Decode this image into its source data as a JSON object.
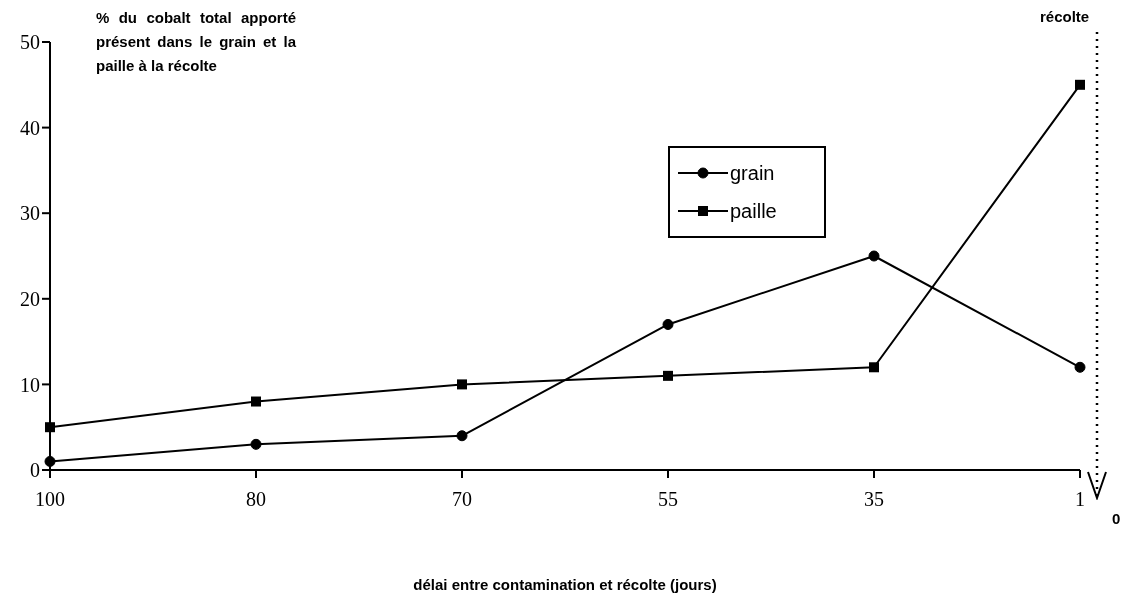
{
  "chart_data": {
    "type": "line",
    "ylabel": "% du cobalt total apporté présent dans le grain et la paille à la récolte",
    "xlabel": "délai entre contamination et récolte (jours)",
    "categories": [
      "100",
      "80",
      "70",
      "55",
      "35",
      "1"
    ],
    "series": [
      {
        "name": "grain",
        "color": "#000000",
        "marker": "circle",
        "values": [
          1,
          3,
          4,
          17,
          25,
          12
        ]
      },
      {
        "name": "paille",
        "color": "#000000",
        "marker": "square",
        "values": [
          5,
          8,
          10,
          11,
          12,
          45
        ]
      }
    ],
    "ylim": [
      0,
      50
    ],
    "yticks": [
      0,
      10,
      20,
      30,
      40,
      50
    ],
    "grid": false,
    "legend": "top right",
    "line_style": "solid",
    "annotations": [
      "récolte",
      "0"
    ]
  }
}
